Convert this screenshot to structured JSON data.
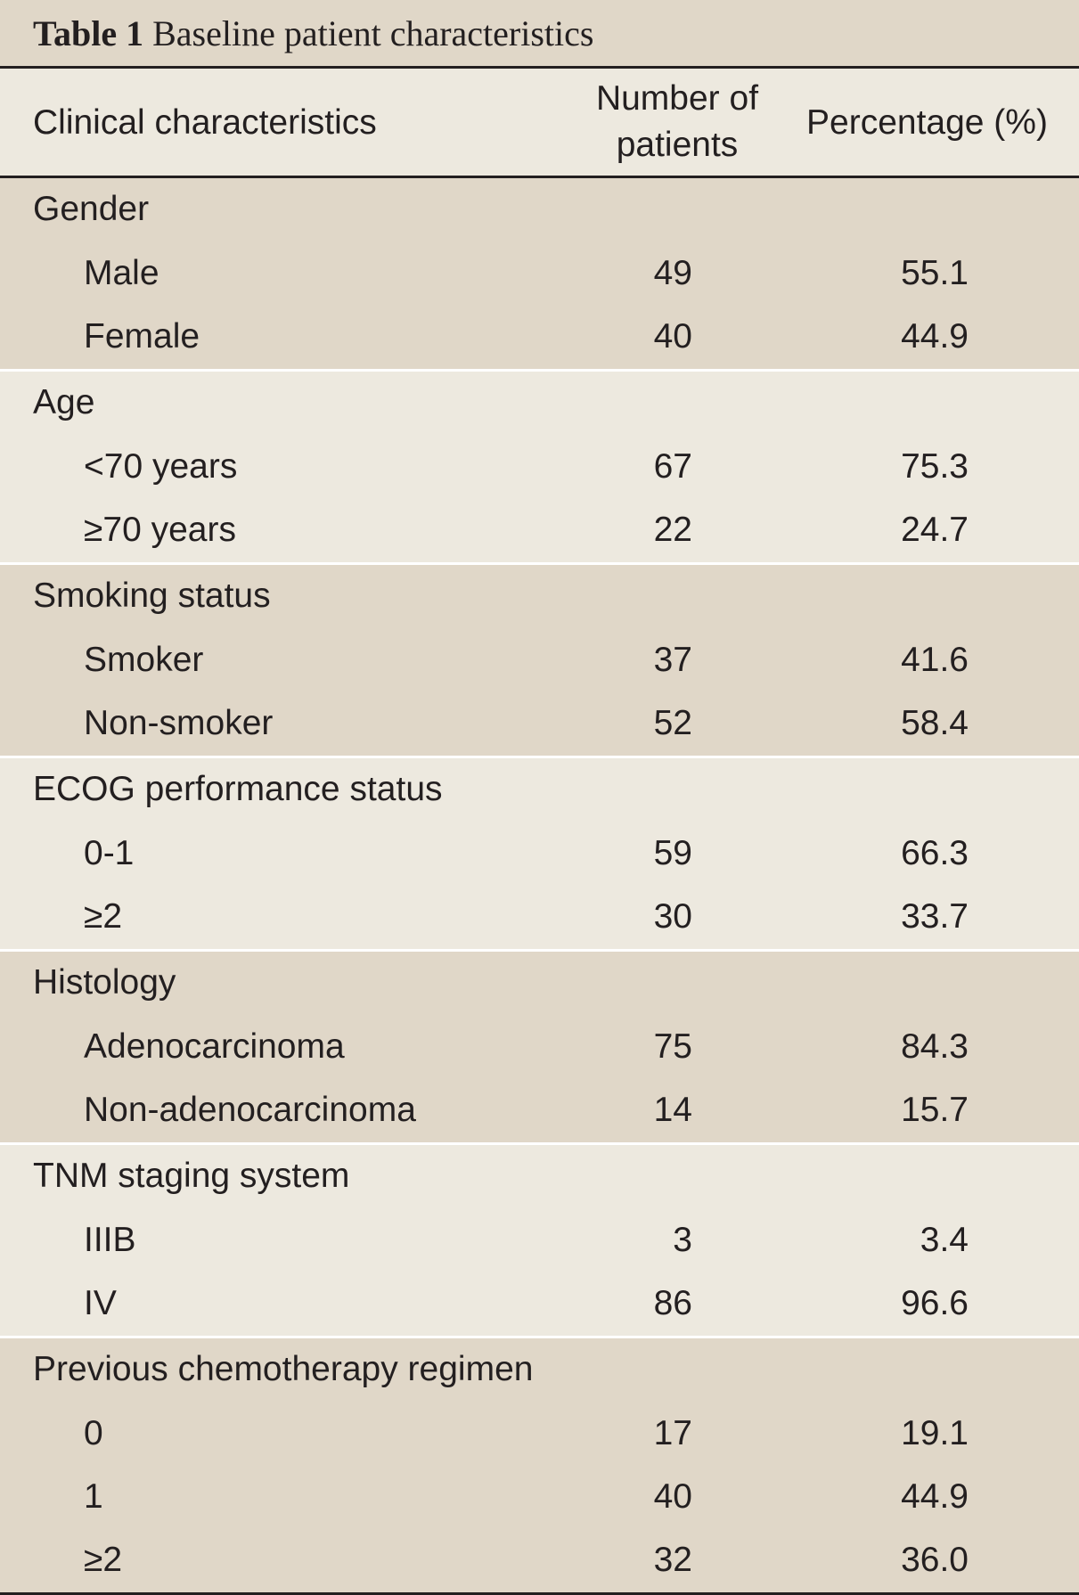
{
  "caption": {
    "label": "Table 1",
    "title": "Baseline patient characteristics"
  },
  "columns": {
    "characteristic": "Clinical characteristics",
    "number_line1": "Number of",
    "number_line2": "patients",
    "percentage": "Percentage (%)"
  },
  "groups": [
    {
      "title": "Gender",
      "rows": [
        {
          "label": "Male",
          "number": "49",
          "percentage": "55.1"
        },
        {
          "label": "Female",
          "number": "40",
          "percentage": "44.9"
        }
      ]
    },
    {
      "title": "Age",
      "rows": [
        {
          "label": "<70 years",
          "number": "67",
          "percentage": "75.3"
        },
        {
          "label": "≥70 years",
          "number": "22",
          "percentage": "24.7"
        }
      ]
    },
    {
      "title": "Smoking status",
      "rows": [
        {
          "label": "Smoker",
          "number": "37",
          "percentage": "41.6"
        },
        {
          "label": "Non-smoker",
          "number": "52",
          "percentage": "58.4"
        }
      ]
    },
    {
      "title": "ECOG performance status",
      "rows": [
        {
          "label": "0-1",
          "number": "59",
          "percentage": "66.3"
        },
        {
          "label": "≥2",
          "number": "30",
          "percentage": "33.7"
        }
      ]
    },
    {
      "title": "Histology",
      "rows": [
        {
          "label": "Adenocarcinoma",
          "number": "75",
          "percentage": "84.3"
        },
        {
          "label": "Non-adenocarcinoma",
          "number": "14",
          "percentage": "15.7"
        }
      ]
    },
    {
      "title": "TNM staging system",
      "rows": [
        {
          "label": "IIIB",
          "number": "3",
          "percentage": "3.4"
        },
        {
          "label": "IV",
          "number": "86",
          "percentage": "96.6"
        }
      ]
    },
    {
      "title": "Previous chemotherapy regimen",
      "rows": [
        {
          "label": "0",
          "number": "17",
          "percentage": "19.1"
        },
        {
          "label": "1",
          "number": "40",
          "percentage": "44.9"
        },
        {
          "label": "≥2",
          "number": "32",
          "percentage": "36.0"
        }
      ]
    }
  ]
}
